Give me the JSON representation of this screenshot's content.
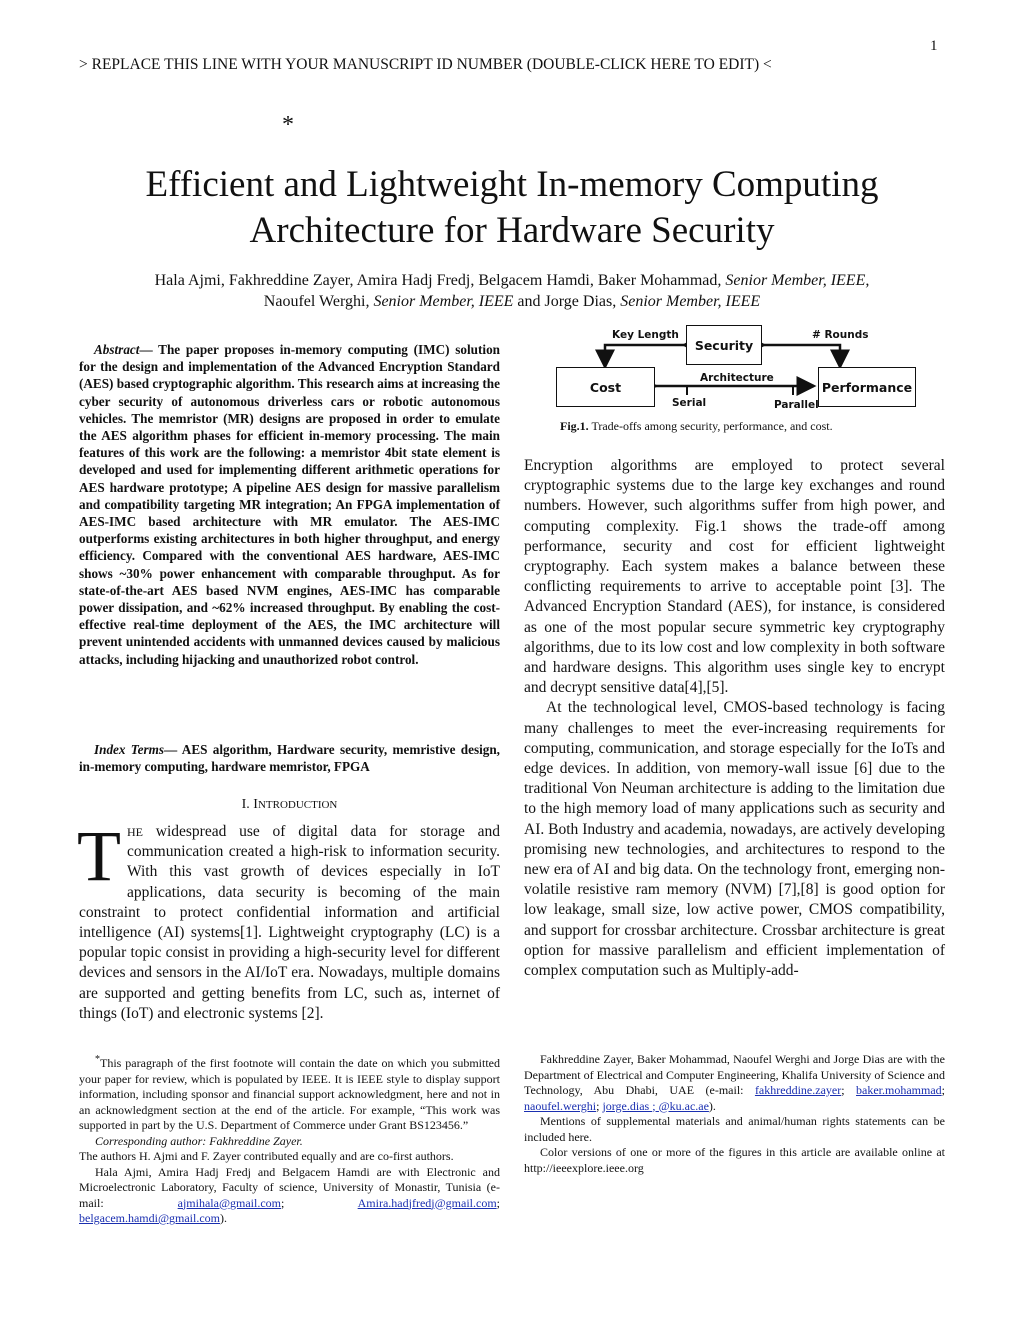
{
  "page_number": "1",
  "header_line": "> REPLACE THIS LINE WITH YOUR MANUSCRIPT ID NUMBER (DOUBLE-CLICK HERE TO EDIT) <",
  "title_star": "*",
  "title_line1": "Efficient and Lightweight In-memory Computing",
  "title_line2": "Architecture for Hardware Security",
  "authors": {
    "line1_names": "Hala Ajmi, Fakhreddine Zayer, Amira Hadj Fredj, Belgacem Hamdi, Baker Mohammad",
    "line1_role": ", Senior Member, IEEE,",
    "line2_name1": "Naoufel Werghi",
    "line2_role1": ", Senior Member, IEEE",
    "line2_and": " and Jorge Dias, ",
    "line2_role2": "Senior Member, IEEE"
  },
  "abstract": {
    "label": "Abstract",
    "dash": "— ",
    "text": "The paper proposes in-memory computing (IMC) solution for the design and implementation of the Advanced Encryption Standard (AES) based cryptographic algorithm. This research aims at increasing the cyber security of autonomous driverless cars or robotic autonomous vehicles. The memristor (MR) designs are proposed in order to emulate the AES algorithm phases for efficient in-memory processing. The main features of this work are the following: a memristor 4bit state element is developed and used for implementing different arithmetic operations for AES hardware prototype; A pipeline AES design for massive parallelism and compatibility targeting MR integration; An FPGA implementation of AES-IMC based architecture with MR emulator. The AES-IMC outperforms existing architectures in both higher throughput, and energy efficiency. Compared with the conventional AES hardware, AES-IMC shows ~30% power enhancement with comparable throughput.  As for state-of-the-art AES based NVM engines, AES-IMC has comparable power dissipation, and ~62% increased throughput. By enabling the cost-effective real-time deployment of the AES, the IMC architecture will prevent unintended accidents with unmanned devices caused by malicious attacks, including hijacking and unauthorized robot control."
  },
  "index_terms": {
    "label": "Index Terms",
    "dash": "— ",
    "text": "AES algorithm, Hardware security, memristive design, in-memory computing, hardware memristor, FPGA"
  },
  "section": {
    "num": "I. ",
    "first": "I",
    "rest": "NTRODUCTION"
  },
  "intro": {
    "dropcap": "T",
    "smallcaps": "HE",
    "text": " widespread use of digital data for storage and communication created a high-risk to information security. With this vast growth of devices especially in IoT applications, data security is becoming of the main constraint to protect confidential information and artificial intelligence (AI) systems[1]. Lightweight cryptography (LC) is a popular topic consist in providing a high-security level for different devices and sensors in the AI/IoT era. Nowadays, multiple domains are supported and getting benefits from LC, such as, internet of things (IoT) and electronic systems [2]."
  },
  "figure": {
    "boxes": {
      "security": "Security",
      "cost": "Cost",
      "performance": "Performance"
    },
    "labels": {
      "key_length": "Key Length",
      "rounds": "# Rounds",
      "architecture": "Architecture",
      "serial": "Serial",
      "parallel": "Parallel"
    },
    "caption_label": "Fig.1.",
    "caption_text": " Trade-offs among security, performance, and cost."
  },
  "right_column": {
    "para1": "Encryption algorithms are employed to protect several cryptographic systems due to the large key exchanges and round numbers. However, such algorithms suffer from high power, and computing complexity. Fig.1 shows the trade-off among performance, security and cost for efficient lightweight cryptography. Each system makes a balance between these conflicting requirements to arrive to acceptable point [3]. The Advanced Encryption Standard (AES), for instance, is considered as one of the most popular secure symmetric key cryptography algorithms, due to its low cost and low complexity in both software and hardware designs. This algorithm uses single key to encrypt and decrypt sensitive data[4],[5].",
    "para2": "At the technological level, CMOS-based technology is facing many challenges to meet the ever-increasing requirements for computing, communication, and storage especially for the IoTs and edge devices. In addition, von memory-wall issue [6] due to the traditional Von Neuman architecture is adding to the limitation due to the high memory load of many applications such as security and AI. Both Industry and academia, nowadays, are actively developing promising new technologies, and architectures to respond to the new era of AI and big data.  On the technology front, emerging non-volatile resistive ram memory  (NVM) [7],[8] is good option for low leakage, small size, low active power, CMOS compatibility, and support for crossbar architecture.  Crossbar architecture is great option for massive parallelism and efficient implementation of complex computation such as Multiply-add-"
  },
  "footnotes_left": {
    "star": "*",
    "p1": "This paragraph of the first footnote will contain the date on which you submitted your paper for review, which is populated by IEEE. It is IEEE style to display support information, including sponsor and financial support acknowledgment, here and not in an acknowledgment section at the end of the article. For example, “This work was supported in part by the U.S. Department of Commerce under Grant BS123456.”",
    "p2": "Corresponding author: Fakhreddine Zayer.",
    "p3": "The authors H. Ajmi and F. Zayer contributed equally and are co-first authors.",
    "p4": "Hala Ajmi, Amira Hadj Fredj and Belgacem Hamdi are with Electronic and Microelectronic Laboratory, Faculty of science, University of Monastir, Tunisia (e-mail: ",
    "email1": "ajmihala@gmail.com",
    "sep": "; ",
    "email2": "Amira.hadjfredj@gmail.com",
    "email3": "belgacem.hamdi@gmail.com",
    "end": ")."
  },
  "footnotes_right": {
    "p1": "Fakhreddine Zayer, Baker Mohammad, Naoufel Werghi and Jorge Dias are with the Department of Electrical and Computer Engineering, Khalifa University of Science and Technology, Abu Dhabi, UAE (e-mail: ",
    "email1": "fakhreddine.zayer",
    "email2": "baker.mohammad",
    "email3": "naoufel.werghi",
    "email4": "jorge.dias ",
    "domain": "@ku.ac.ae",
    "sep": "; ",
    "end": ").",
    "p2": "Mentions of supplemental materials and animal/human rights statements can be included here.",
    "p3": "Color versions of one or more of the figures in this article are available online at http://ieeexplore.ieee.org"
  }
}
